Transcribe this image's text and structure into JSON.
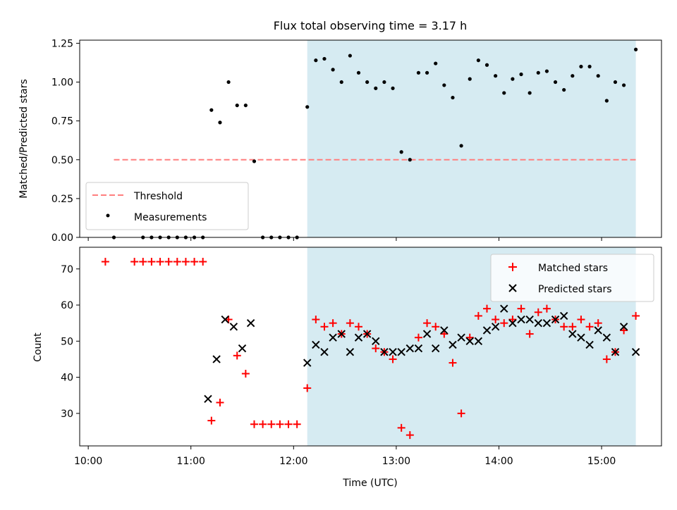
{
  "chart_data": [
    {
      "type": "scatter",
      "title": "Flux total observing time = 3.17 h",
      "xlabel": "",
      "ylabel": "Matched/Predicted stars",
      "ylim": [
        0,
        1.27
      ],
      "yticks": [
        0.0,
        0.25,
        0.5,
        0.75,
        1.0,
        1.25
      ],
      "ytick_labels": [
        "0.00",
        "0.25",
        "0.50",
        "0.75",
        "1.00",
        "1.25"
      ],
      "legend_position": "lower-left",
      "threshold": {
        "name": "Threshold",
        "y": 0.5,
        "x_start": "10:15",
        "x_end": "15:20",
        "color": "#ff7f7f",
        "style": "dashed"
      },
      "shaded_region": {
        "x_start": "12:08",
        "x_end": "15:20",
        "color": "#add8e6"
      },
      "series": [
        {
          "name": "Measurements",
          "color": "#000000",
          "marker": "dot",
          "x": [
            "10:15",
            "10:32",
            "10:37",
            "10:42",
            "10:47",
            "10:52",
            "10:57",
            "11:02",
            "11:07",
            "11:12",
            "11:17",
            "11:22",
            "11:27",
            "11:32",
            "11:37",
            "11:42",
            "11:47",
            "11:52",
            "11:57",
            "12:02",
            "12:08",
            "12:13",
            "12:18",
            "12:23",
            "12:28",
            "12:33",
            "12:38",
            "12:43",
            "12:48",
            "12:53",
            "12:58",
            "13:03",
            "13:08",
            "13:13",
            "13:18",
            "13:23",
            "13:28",
            "13:33",
            "13:38",
            "13:43",
            "13:48",
            "13:53",
            "13:58",
            "14:03",
            "14:08",
            "14:13",
            "14:18",
            "14:23",
            "14:28",
            "14:33",
            "14:38",
            "14:43",
            "14:48",
            "14:53",
            "14:58",
            "15:03",
            "15:08",
            "15:13",
            "15:20"
          ],
          "y": [
            0,
            0,
            0,
            0,
            0,
            0,
            0,
            0,
            0,
            0.82,
            0.74,
            1.0,
            0.85,
            0.85,
            0.49,
            0,
            0,
            0,
            0,
            0,
            0.84,
            1.14,
            1.15,
            1.08,
            1.0,
            1.17,
            1.06,
            1.0,
            0.96,
            1.0,
            0.96,
            0.55,
            0.5,
            1.06,
            1.06,
            1.12,
            0.98,
            0.9,
            0.59,
            1.02,
            1.14,
            1.11,
            1.04,
            0.93,
            1.02,
            1.05,
            0.93,
            1.06,
            1.07,
            1.0,
            0.95,
            1.04,
            1.1,
            1.1,
            1.04,
            0.88,
            1.0,
            0.98,
            1.21
          ]
        }
      ]
    },
    {
      "type": "scatter",
      "title": "",
      "xlabel": "Time (UTC)",
      "ylabel": "Count",
      "ylim": [
        21,
        76
      ],
      "yticks": [
        30,
        40,
        50,
        60,
        70
      ],
      "ytick_labels": [
        "30",
        "40",
        "50",
        "60",
        "70"
      ],
      "xlim": [
        "09:55",
        "15:35"
      ],
      "xticks": [
        "10:00",
        "11:00",
        "12:00",
        "13:00",
        "14:00",
        "15:00"
      ],
      "legend_position": "upper-right",
      "shaded_region": {
        "x_start": "12:08",
        "x_end": "15:20",
        "color": "#add8e6"
      },
      "series": [
        {
          "name": "Matched stars",
          "color": "#ff0000",
          "marker": "plus",
          "x": [
            "10:10",
            "10:27",
            "10:32",
            "10:37",
            "10:42",
            "10:47",
            "10:52",
            "10:57",
            "11:02",
            "11:07",
            "11:12",
            "11:17",
            "11:22",
            "11:27",
            "11:32",
            "11:37",
            "11:42",
            "11:47",
            "11:52",
            "11:57",
            "12:02",
            "12:08",
            "12:13",
            "12:18",
            "12:23",
            "12:28",
            "12:33",
            "12:38",
            "12:43",
            "12:48",
            "12:53",
            "12:58",
            "13:03",
            "13:08",
            "13:13",
            "13:18",
            "13:23",
            "13:28",
            "13:33",
            "13:38",
            "13:43",
            "13:48",
            "13:53",
            "13:58",
            "14:03",
            "14:08",
            "14:13",
            "14:18",
            "14:23",
            "14:28",
            "14:33",
            "14:38",
            "14:43",
            "14:48",
            "14:53",
            "14:58",
            "15:03",
            "15:08",
            "15:13",
            "15:20"
          ],
          "y": [
            72,
            72,
            72,
            72,
            72,
            72,
            72,
            72,
            72,
            72,
            28,
            33,
            56,
            46,
            41,
            27,
            27,
            27,
            27,
            27,
            27,
            37,
            56,
            54,
            55,
            52,
            55,
            54,
            52,
            48,
            47,
            45,
            26,
            24,
            51,
            55,
            54,
            52,
            44,
            30,
            51,
            57,
            59,
            56,
            55,
            56,
            59,
            52,
            58,
            59,
            56,
            54,
            54,
            56,
            54,
            55,
            45,
            47,
            53,
            57
          ]
        },
        {
          "name": "Predicted stars",
          "color": "#000000",
          "marker": "x",
          "x": [
            "11:10",
            "11:15",
            "11:20",
            "11:25",
            "11:30",
            "11:35",
            "12:08",
            "12:13",
            "12:18",
            "12:23",
            "12:28",
            "12:33",
            "12:38",
            "12:43",
            "12:48",
            "12:53",
            "12:58",
            "13:03",
            "13:08",
            "13:13",
            "13:18",
            "13:23",
            "13:28",
            "13:33",
            "13:38",
            "13:43",
            "13:48",
            "13:53",
            "13:58",
            "14:03",
            "14:08",
            "14:13",
            "14:18",
            "14:23",
            "14:28",
            "14:33",
            "14:38",
            "14:43",
            "14:48",
            "14:53",
            "14:58",
            "15:03",
            "15:08",
            "15:13",
            "15:20"
          ],
          "y": [
            34,
            45,
            56,
            54,
            48,
            55,
            44,
            49,
            47,
            51,
            52,
            47,
            51,
            52,
            50,
            47,
            47,
            47,
            48,
            48,
            52,
            48,
            53,
            49,
            51,
            50,
            50,
            53,
            54,
            59,
            55,
            56,
            56,
            55,
            55,
            56,
            57,
            52,
            51,
            49,
            53,
            51,
            47,
            54,
            47
          ]
        }
      ]
    }
  ]
}
